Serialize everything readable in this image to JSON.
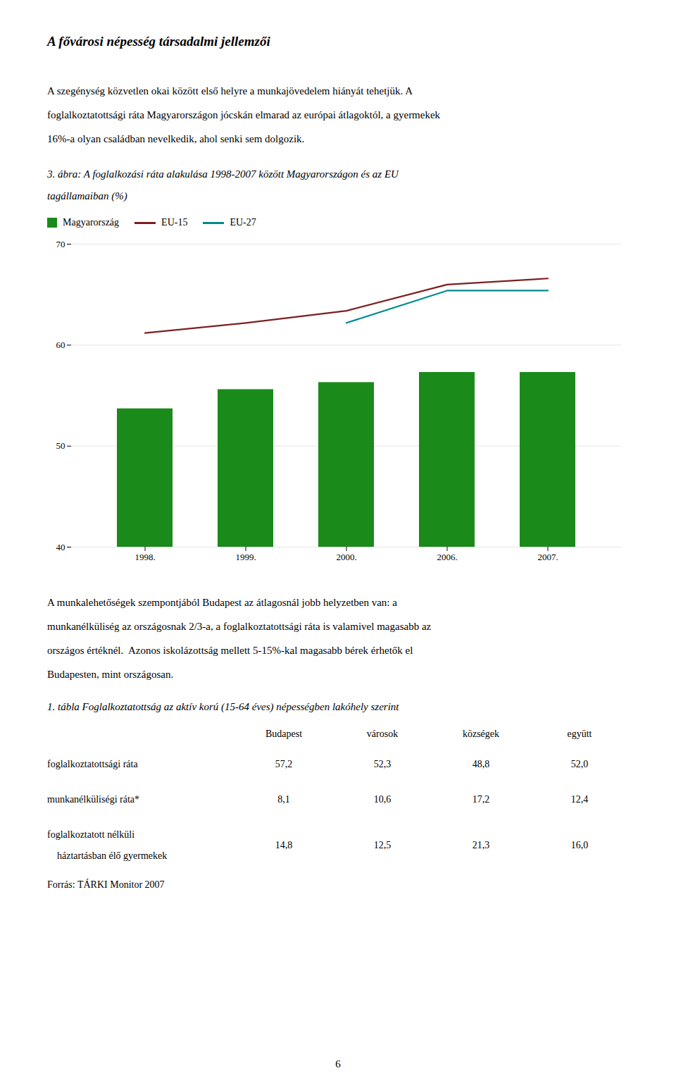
{
  "page_title": "A fővárosi népesség társadalmi jellemzői",
  "paragraphs": [
    [
      "A szegénység közvetlen okai között első helyre a munkajövedelem hiányát tehetjük. A",
      "foglalkoztatottsági ráta Magyarországon jócskán elmarad az európai átlagoktól, a gyermekek",
      "16%-a olyan családban nevelkedik, ahol senki sem dolgozik."
    ],
    [
      "A munkalehetőségek szempontjából Budapest az átlagosnál jobb helyzetben van: a",
      "munkanélküliség az országosnak 2/3-a, a foglalkoztatottsági ráta is valamivel magasabb az",
      "országos értéknél.  Azonos iskolázottság mellett 5-15%-kal magasabb bérek érhetők el",
      "Budapesten, mint országosan."
    ]
  ],
  "chart_data": {
    "type": "bar",
    "title": [
      "3. ábra: A foglalkozási ráta alakulása 1998-2007 között Magyarországon és az EU",
      "tagállamaiban (%)"
    ],
    "categories": [
      "1998.",
      "1999.",
      "2000.",
      "2006.",
      "2007."
    ],
    "series": [
      {
        "name": "Magyarország",
        "type": "bar",
        "color": "#1a8a1a",
        "values": [
          53.7,
          55.6,
          56.3,
          57.3,
          57.3
        ]
      },
      {
        "name": "EU-15",
        "type": "line",
        "color": "#7b2020",
        "values": [
          61.2,
          62.2,
          63.4,
          66.0,
          66.6
        ]
      },
      {
        "name": "EU-27",
        "type": "line",
        "color": "#008b8b",
        "values": [
          null,
          null,
          62.2,
          65.4,
          65.4
        ]
      }
    ],
    "ylim": [
      40,
      70
    ],
    "yticks": [
      40,
      50,
      60,
      70
    ],
    "grid": true,
    "legend": "upper left"
  },
  "table": {
    "title": "1. tábla Foglalkoztatottság az aktív korú (15-64 éves) népességben lakóhely szerint",
    "headers": [
      "Budapest",
      "városok",
      "községek",
      "együtt"
    ],
    "rows": [
      {
        "label": [
          "foglalkoztatottsági ráta"
        ],
        "cells": [
          "57,2",
          "52,3",
          "48,8",
          "52,0"
        ]
      },
      {
        "label": [
          "munkanélküliségi ráta*"
        ],
        "cells": [
          "8,1",
          "10,6",
          "17,2",
          "12,4"
        ]
      },
      {
        "label": [
          "foglalkoztatott nélküli",
          "    háztartásban élő gyermekek"
        ],
        "cells": [
          "14,8",
          "12,5",
          "21,3",
          "16,0"
        ]
      }
    ],
    "source": "Forrás: TÁRKI Monitor 2007"
  },
  "page_number": "6"
}
